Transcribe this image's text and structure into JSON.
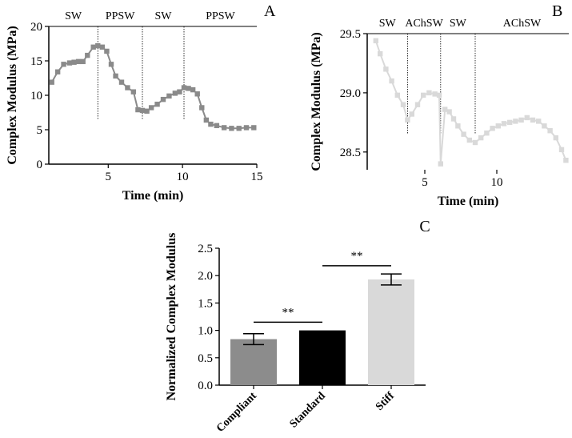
{
  "chart_data": [
    {
      "panel": "A",
      "type": "line",
      "xlabel": "Time (min)",
      "ylabel": "Complex Modulus (MPa)",
      "xlim": [
        1,
        15
      ],
      "ylim": [
        0,
        20
      ],
      "xticks": [
        "5",
        "10",
        "15"
      ],
      "xtick_values": [
        5,
        10,
        15
      ],
      "yticks": [
        "0",
        "5",
        "10",
        "15",
        "20"
      ],
      "ytick_values": [
        0,
        5,
        10,
        15,
        20
      ],
      "regions": [
        "SW",
        "PPSW",
        "SW",
        "PPSW"
      ],
      "boundaries": [
        4.3,
        7.3,
        10.1
      ],
      "color": "#8a8a8a",
      "series": [
        {
          "x": [
            1.2,
            1.6,
            2.0,
            2.4,
            2.7,
            3.0,
            3.3,
            3.6,
            4.0,
            4.3,
            4.6,
            4.9,
            5.2,
            5.5,
            5.9,
            6.3,
            6.7,
            7.0,
            7.3,
            7.6,
            7.9,
            8.3,
            8.7,
            9.1,
            9.5,
            9.8,
            10.1,
            10.4,
            10.7,
            11.0,
            11.3,
            11.6,
            11.9,
            12.3,
            12.8,
            13.3,
            13.8,
            14.3,
            14.8
          ],
          "y": [
            11.9,
            13.4,
            14.5,
            14.7,
            14.8,
            14.9,
            14.9,
            15.8,
            17.0,
            17.2,
            17.0,
            16.4,
            14.5,
            12.8,
            11.9,
            11.1,
            10.5,
            7.9,
            7.8,
            7.7,
            8.2,
            8.7,
            9.4,
            9.9,
            10.3,
            10.5,
            11.1,
            11.0,
            10.8,
            10.2,
            8.2,
            6.4,
            5.8,
            5.6,
            5.3,
            5.2,
            5.2,
            5.3,
            5.3
          ]
        }
      ]
    },
    {
      "panel": "B",
      "type": "line",
      "xlabel": "Time (min)",
      "ylabel": "Complex Modulus (MPa)",
      "xlim": [
        1,
        15
      ],
      "ylim": [
        28.35,
        29.5
      ],
      "xticks": [
        "5",
        "10"
      ],
      "xtick_values": [
        5,
        10
      ],
      "yticks": [
        "28.5",
        "29.0",
        "29.5"
      ],
      "ytick_values": [
        28.5,
        29.0,
        29.5
      ],
      "regions": [
        "SW",
        "AChSW",
        "SW",
        "AChSW"
      ],
      "boundaries": [
        3.8,
        6.1,
        8.5
      ],
      "color": "#d9d9d9",
      "series": [
        {
          "x": [
            1.6,
            1.9,
            2.3,
            2.7,
            3.1,
            3.5,
            3.8,
            4.1,
            4.5,
            4.9,
            5.3,
            5.7,
            6.0,
            6.1,
            6.4,
            6.7,
            7.0,
            7.3,
            7.7,
            8.1,
            8.5,
            8.9,
            9.3,
            9.7,
            10.1,
            10.5,
            10.9,
            11.3,
            11.7,
            12.1,
            12.5,
            12.9,
            13.3,
            13.7,
            14.1,
            14.5,
            14.8
          ],
          "y": [
            29.44,
            29.33,
            29.2,
            29.1,
            28.98,
            28.9,
            28.77,
            28.82,
            28.9,
            28.98,
            29.0,
            28.99,
            28.98,
            28.4,
            28.86,
            28.84,
            28.78,
            28.72,
            28.65,
            28.6,
            28.58,
            28.62,
            28.66,
            28.7,
            28.72,
            28.74,
            28.75,
            28.76,
            28.77,
            28.79,
            28.77,
            28.76,
            28.72,
            28.68,
            28.62,
            28.52,
            28.43
          ]
        }
      ]
    },
    {
      "panel": "C",
      "type": "bar",
      "ylabel": "Normalized Complex Modulus",
      "ylim": [
        0,
        2.5
      ],
      "yticks": [
        "0.0",
        "0.5",
        "1.0",
        "1.5",
        "2.0",
        "2.5"
      ],
      "ytick_values": [
        0,
        0.5,
        1.0,
        1.5,
        2.0,
        2.5
      ],
      "categories": [
        "Compliant",
        "Standard",
        "Stiff"
      ],
      "values": [
        0.84,
        1.0,
        1.93
      ],
      "errors": [
        0.1,
        0.0,
        0.1
      ],
      "colors": [
        "#8c8c8c",
        "#000000",
        "#d9d9d9"
      ],
      "significance": [
        {
          "from": 0,
          "to": 1,
          "label": "**"
        },
        {
          "from": 1,
          "to": 2,
          "label": "**"
        }
      ]
    }
  ]
}
